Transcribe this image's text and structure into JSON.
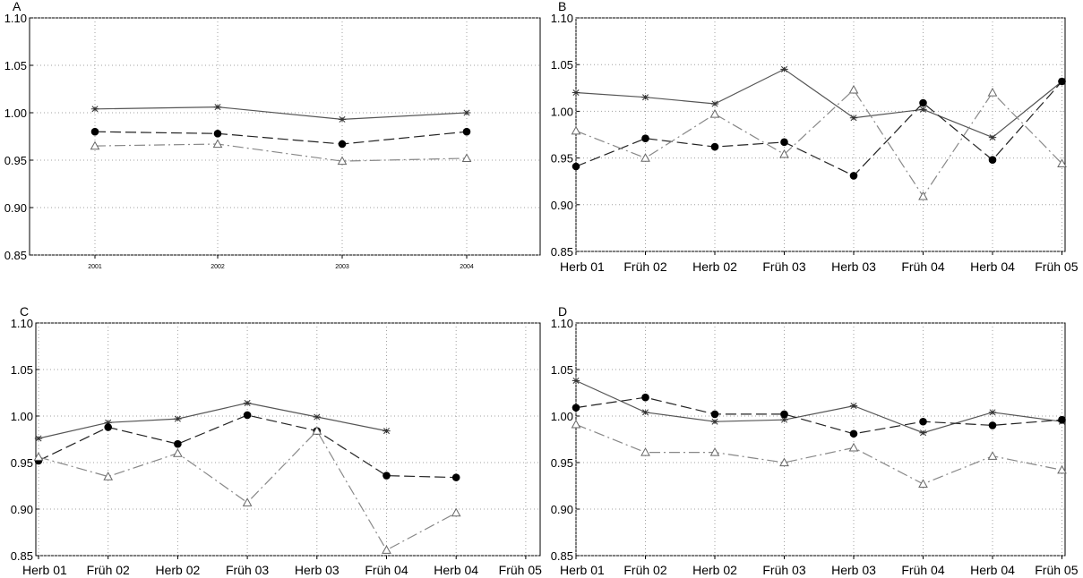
{
  "chart_data": [
    {
      "panel": "A",
      "type": "line",
      "categories": [
        "2001",
        "2002",
        "2003",
        "2004"
      ],
      "yticks": [
        "0.85",
        "0.90",
        "0.95",
        "1.00",
        "1.05",
        "1.10"
      ],
      "ylim": [
        0.85,
        1.1
      ],
      "grid": true,
      "series": [
        {
          "marker": "star",
          "line": "solid",
          "color": "#555555",
          "values": [
            1.004,
            1.006,
            0.993,
            1.0
          ]
        },
        {
          "marker": "dot",
          "line": "dashed",
          "color": "#222222",
          "values": [
            0.98,
            0.978,
            0.967,
            0.98
          ]
        },
        {
          "marker": "triangle",
          "line": "dashdot",
          "color": "#888888",
          "values": [
            0.965,
            0.967,
            0.949,
            0.952
          ]
        }
      ]
    },
    {
      "panel": "B",
      "type": "line",
      "categories": [
        "Herb 01",
        "Früh 02",
        "Herb 02",
        "Früh 03",
        "Herb 03",
        "Früh 04",
        "Herb 04",
        "Früh 05"
      ],
      "yticks": [
        "0.85",
        "0.90",
        "0.95",
        "1.00",
        "1.05",
        "1.10"
      ],
      "ylim": [
        0.85,
        1.1
      ],
      "grid": true,
      "series": [
        {
          "marker": "star",
          "line": "solid",
          "color": "#555555",
          "values": [
            1.02,
            1.015,
            1.008,
            1.045,
            0.993,
            1.002,
            0.972,
            1.032
          ]
        },
        {
          "marker": "dot",
          "line": "dashed",
          "color": "#222222",
          "values": [
            0.941,
            0.971,
            0.962,
            0.967,
            0.931,
            1.009,
            0.948,
            1.032
          ]
        },
        {
          "marker": "triangle",
          "line": "dashdot",
          "color": "#888888",
          "values": [
            0.979,
            0.95,
            0.997,
            0.954,
            1.023,
            0.909,
            1.02,
            0.944
          ]
        }
      ]
    },
    {
      "panel": "C",
      "type": "line",
      "categories": [
        "Herb 01",
        "Früh 02",
        "Herb 02",
        "Früh 03",
        "Herb 03",
        "Früh 04",
        "Herb 04",
        "Früh 05"
      ],
      "yticks": [
        "0.85",
        "0.90",
        "0.95",
        "1.00",
        "1.05",
        "1.10"
      ],
      "ylim": [
        0.85,
        1.1
      ],
      "grid": true,
      "series": [
        {
          "marker": "star",
          "line": "solid",
          "color": "#555555",
          "values": [
            0.976,
            0.993,
            0.997,
            1.014,
            0.999,
            0.984,
            null,
            null
          ]
        },
        {
          "marker": "dot",
          "line": "dashed",
          "color": "#222222",
          "values": [
            0.952,
            0.988,
            0.97,
            1.001,
            0.984,
            0.936,
            0.934,
            null
          ]
        },
        {
          "marker": "triangle",
          "line": "dashdot",
          "color": "#888888",
          "values": [
            0.956,
            0.935,
            0.96,
            0.907,
            0.984,
            0.856,
            0.896,
            null
          ]
        }
      ]
    },
    {
      "panel": "D",
      "type": "line",
      "categories": [
        "Herb 01",
        "Früh 02",
        "Herb 02",
        "Früh 03",
        "Herb 03",
        "Früh 04",
        "Herb 04",
        "Früh 05"
      ],
      "yticks": [
        "0.85",
        "0.90",
        "0.95",
        "1.00",
        "1.05",
        "1.10"
      ],
      "ylim": [
        0.85,
        1.1
      ],
      "grid": true,
      "series": [
        {
          "marker": "star",
          "line": "solid",
          "color": "#555555",
          "values": [
            1.038,
            1.004,
            0.994,
            0.996,
            1.011,
            0.982,
            1.004,
            0.994
          ]
        },
        {
          "marker": "dot",
          "line": "dashed",
          "color": "#222222",
          "values": [
            1.009,
            1.02,
            1.002,
            1.002,
            0.981,
            0.994,
            0.99,
            0.996
          ]
        },
        {
          "marker": "triangle",
          "line": "dashdot",
          "color": "#888888",
          "values": [
            0.991,
            0.961,
            0.961,
            0.95,
            0.966,
            0.927,
            0.957,
            0.942
          ]
        }
      ]
    }
  ]
}
